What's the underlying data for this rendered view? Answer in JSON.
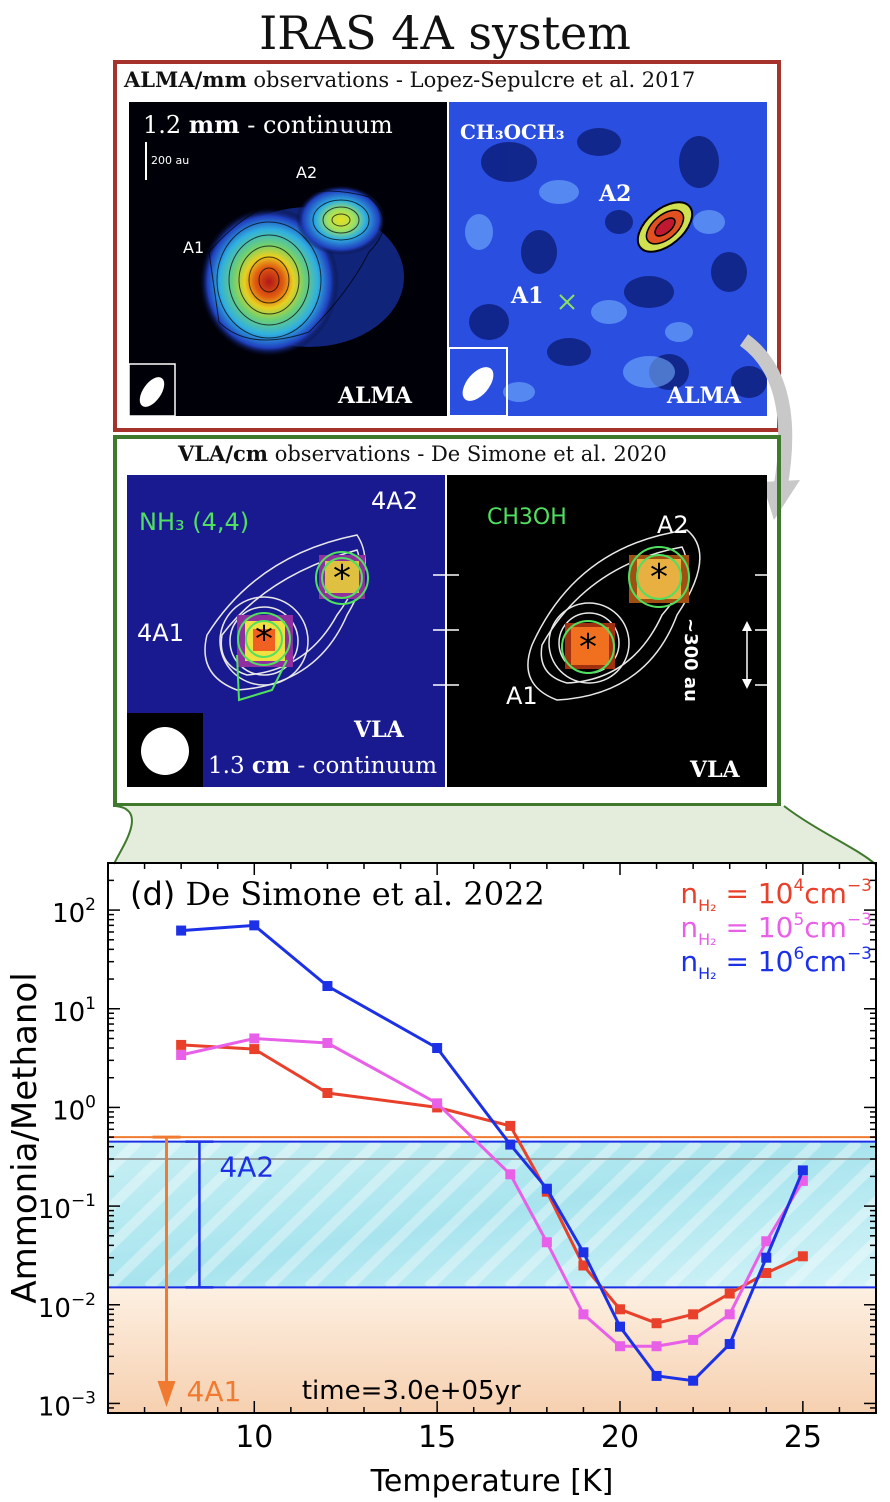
{
  "title": "IRAS 4A system",
  "alma": {
    "caption_bold": "ALMA/mm",
    "caption_rest": " observations - Lopez-Sepulcre et al. 2017",
    "left": {
      "label_num": "1.2 ",
      "label_bold": "mm",
      "label_rest": " - continuum",
      "scalebar": "200 au",
      "a1": "A1",
      "a2": "A2",
      "telescope": "ALMA"
    },
    "right": {
      "molecule": "CH₃OCH₃",
      "a1": "A1",
      "a2": "A2",
      "telescope": "ALMA"
    }
  },
  "vla": {
    "caption_bold": "VLA/cm",
    "caption_rest": " observations - De Simone et al. 2020",
    "left": {
      "molecule": "NH₃ (4,4)",
      "a1": "4A1",
      "a2": "4A2",
      "telescope": "VLA",
      "cont_num": "1.3 ",
      "cont_bold": "cm",
      "cont_rest": " - continuum"
    },
    "right": {
      "molecule": "CH3OH",
      "a1": "A1",
      "a2": "A2",
      "telescope": "VLA",
      "scale": "~300 au"
    }
  },
  "chart_data": {
    "type": "line",
    "panel_label": "(d)",
    "title": "De Simone et al. 2022",
    "xlabel": "Temperature [K]",
    "ylabel": "Ammonia/Methanol",
    "xlim": [
      6,
      27
    ],
    "ylim": [
      0.0008,
      300
    ],
    "yscale": "log",
    "xticks": [
      10,
      15,
      20,
      25
    ],
    "yticks": [
      {
        "v": 0.001,
        "base": "10",
        "exp": "−3"
      },
      {
        "v": 0.01,
        "base": "10",
        "exp": "−2"
      },
      {
        "v": 0.1,
        "base": "10",
        "exp": "−1"
      },
      {
        "v": 1,
        "base": "10",
        "exp": "0"
      },
      {
        "v": 10,
        "base": "10",
        "exp": "1"
      },
      {
        "v": 100,
        "base": "10",
        "exp": "2"
      }
    ],
    "x": [
      8,
      10,
      12,
      15,
      17,
      18,
      19,
      20,
      21,
      22,
      23,
      24,
      25
    ],
    "series": [
      {
        "name": "n_H2 = 10^4 cm^-3",
        "legend_pre": "n",
        "legend_sub": "H₂",
        "legend_mid": " = 10",
        "legend_sup": "4",
        "legend_unit": "cm",
        "legend_unit_sup": "−3",
        "color": "#e8402a",
        "values": [
          4.3,
          3.9,
          1.4,
          1.0,
          0.65,
          0.14,
          0.025,
          0.009,
          0.0065,
          0.008,
          0.013,
          0.021,
          0.031
        ]
      },
      {
        "name": "n_H2 = 10^5 cm^-3",
        "legend_pre": "n",
        "legend_sub": "H₂",
        "legend_mid": " = 10",
        "legend_sup": "5",
        "legend_unit": "cm",
        "legend_unit_sup": "−3",
        "color": "#e860e8",
        "values": [
          3.4,
          5.0,
          4.5,
          1.1,
          0.21,
          0.043,
          0.008,
          0.0038,
          0.0038,
          0.0044,
          0.008,
          0.044,
          0.18
        ]
      },
      {
        "name": "n_H2 = 10^6 cm^-3",
        "legend_pre": "n",
        "legend_sub": "H₂",
        "legend_mid": " = 10",
        "legend_sup": "6",
        "legend_unit": "cm",
        "legend_unit_sup": "−3",
        "color": "#1c30e6",
        "values": [
          62,
          70,
          17,
          4.0,
          0.42,
          0.15,
          0.034,
          0.006,
          0.0019,
          0.0017,
          0.004,
          0.03,
          0.23
        ]
      }
    ],
    "bands": {
      "4A2": {
        "label": "4A2",
        "low": 0.015,
        "high": 0.45,
        "color": "#1c30e6"
      },
      "4A1": {
        "label": "4A1",
        "upper_limit": 0.5,
        "color": "#f07b30"
      },
      "gray_line": 0.3
    },
    "annotation": "time=3.0e+05yr"
  }
}
